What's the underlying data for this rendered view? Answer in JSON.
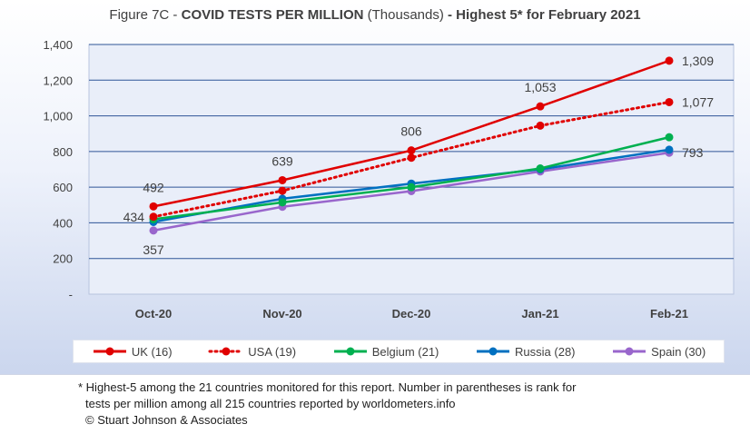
{
  "title": {
    "prefix": "Figure 7C - ",
    "bold1": "COVID TESTS PER MILLION",
    "mid": " (Thousands) ",
    "bold2": "- Highest 5* for February 2021"
  },
  "chart_data": {
    "type": "line",
    "categories": [
      "Oct-20",
      "Nov-20",
      "Dec-20",
      "Jan-21",
      "Feb-21"
    ],
    "ylim": [
      0,
      1400
    ],
    "yticks": [
      0,
      200,
      400,
      600,
      800,
      1000,
      1200,
      1400
    ],
    "ytick_labels": [
      "-",
      "200",
      "400",
      "600",
      "800",
      "1,000",
      "1,200",
      "1,400"
    ],
    "grid": true,
    "legend_position": "bottom",
    "series": [
      {
        "name": "UK (16)",
        "color": "#e00000",
        "dashed": false,
        "values": [
          492,
          639,
          806,
          1053,
          1309
        ]
      },
      {
        "name": "USA (19)",
        "color": "#e00000",
        "dashed": true,
        "values": [
          434,
          580,
          765,
          945,
          1077
        ]
      },
      {
        "name": "Belgium (21)",
        "color": "#00b050",
        "dashed": false,
        "values": [
          420,
          515,
          600,
          705,
          880
        ]
      },
      {
        "name": "Russia (28)",
        "color": "#0070c0",
        "dashed": false,
        "values": [
          405,
          535,
          620,
          700,
          810
        ]
      },
      {
        "name": "Spain (30)",
        "color": "#9966cc",
        "dashed": false,
        "values": [
          357,
          490,
          578,
          688,
          793
        ]
      }
    ],
    "annotations": [
      {
        "series": 0,
        "index": 0,
        "text": "492"
      },
      {
        "series": 0,
        "index": 1,
        "text": "639"
      },
      {
        "series": 0,
        "index": 2,
        "text": "806"
      },
      {
        "series": 0,
        "index": 3,
        "text": "1,053"
      },
      {
        "series": 0,
        "index": 4,
        "text": "1,309"
      },
      {
        "series": 1,
        "index": 0,
        "text": "434"
      },
      {
        "series": 1,
        "index": 4,
        "text": "1,077"
      },
      {
        "series": 4,
        "index": 0,
        "text": "357"
      },
      {
        "series": 4,
        "index": 4,
        "text": "793"
      }
    ]
  },
  "footnote": {
    "line1": "* Highest-5 among the 21 countries monitored for this report. Number in parentheses is rank for",
    "line2": "tests per million among all 215 countries reported by worldometers.info",
    "line3": "© Stuart Johnson & Associates"
  }
}
